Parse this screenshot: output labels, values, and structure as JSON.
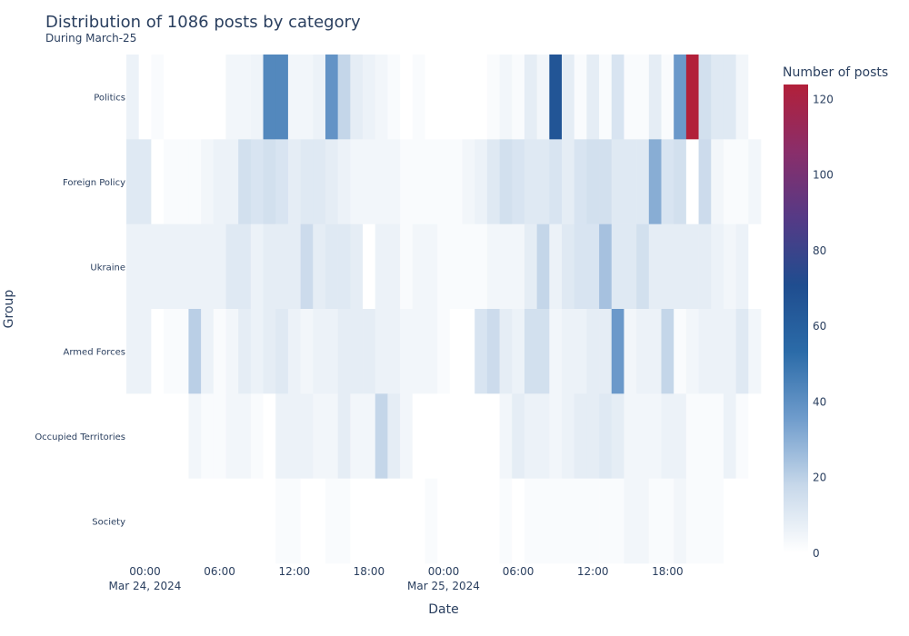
{
  "chart_data": {
    "type": "heatmap",
    "title": "Distribution of 1086 posts by category",
    "subtitle": "During March-25",
    "xlabel": "Date",
    "ylabel": "Group",
    "colorbar_title": "Number of posts",
    "colorbar_ticks": [
      "0",
      "20",
      "40",
      "60",
      "80",
      "100",
      "120"
    ],
    "x_tick_labels": [
      {
        "time": "00:00",
        "date": "Mar 24, 2024"
      },
      {
        "time": "06:00",
        "date": ""
      },
      {
        "time": "12:00",
        "date": ""
      },
      {
        "time": "18:00",
        "date": ""
      },
      {
        "time": "00:00",
        "date": "Mar 25, 2024"
      },
      {
        "time": "06:00",
        "date": ""
      },
      {
        "time": "12:00",
        "date": ""
      },
      {
        "time": "18:00",
        "date": ""
      }
    ],
    "x_start": "2024-03-23T23:00",
    "x_step_hours": 1,
    "categories": [
      "Politics",
      "Foreign Policy",
      "Ukraine",
      "Armed Forces",
      "Occupied Territories",
      "Society"
    ],
    "zmin": 0,
    "zmax": 122,
    "colorscale": [
      "#ffffff",
      "#c7d8ea",
      "#6f9ccc",
      "#2b6ba8",
      "#1f4d8f",
      "#553a86",
      "#8a2e6a",
      "#b2203a"
    ],
    "values": [
      [
        6,
        0,
        2,
        0,
        0,
        0,
        0,
        0,
        4,
        4,
        5,
        42,
        42,
        4,
        4,
        6,
        38,
        18,
        8,
        6,
        4,
        2,
        0,
        2,
        0,
        0,
        0,
        0,
        0,
        2,
        4,
        2,
        8,
        4,
        65,
        8,
        2,
        8,
        2,
        12,
        2,
        2,
        8,
        2,
        36,
        122,
        14,
        10,
        10,
        4,
        0
      ],
      [
        10,
        10,
        0,
        2,
        2,
        2,
        4,
        6,
        6,
        14,
        12,
        14,
        12,
        8,
        10,
        10,
        8,
        6,
        4,
        4,
        4,
        4,
        2,
        2,
        2,
        2,
        2,
        4,
        6,
        10,
        14,
        12,
        10,
        10,
        12,
        8,
        12,
        14,
        14,
        10,
        10,
        10,
        30,
        12,
        14,
        0,
        16,
        4,
        2,
        2,
        4
      ],
      [
        6,
        6,
        6,
        6,
        6,
        6,
        6,
        6,
        10,
        10,
        6,
        8,
        8,
        8,
        16,
        8,
        10,
        10,
        8,
        0,
        6,
        6,
        2,
        4,
        4,
        2,
        2,
        2,
        2,
        4,
        4,
        4,
        8,
        18,
        6,
        10,
        12,
        12,
        24,
        10,
        10,
        14,
        8,
        8,
        8,
        8,
        8,
        6,
        4,
        6,
        0
      ],
      [
        6,
        6,
        0,
        2,
        2,
        20,
        6,
        2,
        4,
        8,
        6,
        8,
        10,
        6,
        4,
        6,
        6,
        8,
        8,
        8,
        6,
        6,
        4,
        4,
        4,
        2,
        0,
        0,
        12,
        16,
        8,
        6,
        14,
        14,
        4,
        6,
        6,
        8,
        8,
        36,
        4,
        6,
        6,
        18,
        2,
        4,
        6,
        6,
        6,
        10,
        4
      ],
      [
        0,
        0,
        0,
        0,
        0,
        4,
        2,
        2,
        4,
        4,
        2,
        0,
        6,
        6,
        6,
        4,
        4,
        8,
        4,
        4,
        18,
        8,
        4,
        0,
        0,
        0,
        0,
        0,
        0,
        0,
        4,
        8,
        6,
        6,
        4,
        6,
        8,
        8,
        10,
        8,
        4,
        4,
        4,
        6,
        6,
        2,
        2,
        2,
        6,
        2,
        0
      ],
      [
        0,
        0,
        0,
        0,
        0,
        0,
        0,
        0,
        0,
        0,
        0,
        0,
        2,
        2,
        0,
        0,
        2,
        2,
        0,
        0,
        0,
        0,
        0,
        0,
        2,
        0,
        0,
        0,
        0,
        0,
        2,
        0,
        2,
        2,
        2,
        2,
        2,
        2,
        2,
        2,
        4,
        4,
        2,
        2,
        4,
        2,
        2,
        2,
        0,
        0,
        0
      ]
    ]
  }
}
